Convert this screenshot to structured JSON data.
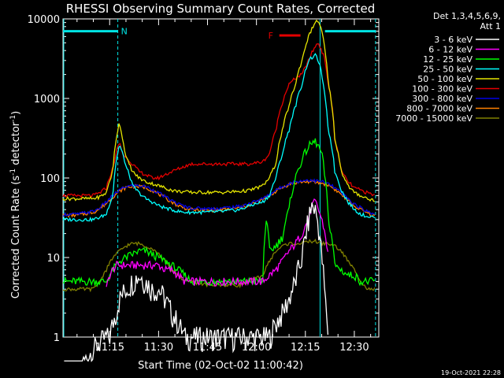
{
  "chart_data": {
    "type": "line",
    "title": "RHESSI Observing Summary Count Rates, Corrected",
    "xlabel": "Start Time (02-Oct-02 11:00:42)",
    "ylabel_main": "Corrected Count Rate (s",
    "ylabel_sup1": "-1",
    "ylabel_mid": " detector",
    "ylabel_sup2": "-1",
    "ylabel_end": ")",
    "yscale": "log",
    "ylim": [
      1,
      10000
    ],
    "xlim_minutes": [
      0.7,
      97.5
    ],
    "x_ticks": [
      {
        "min": 15,
        "label": "11:15"
      },
      {
        "min": 30,
        "label": "11:30"
      },
      {
        "min": 45,
        "label": "11:45"
      },
      {
        "min": 60,
        "label": "12:00"
      },
      {
        "min": 75,
        "label": "12:15"
      },
      {
        "min": 90,
        "label": "12:30"
      }
    ],
    "y_ticks": [
      {
        "v": 1,
        "label": "1"
      },
      {
        "v": 10,
        "label": "10"
      },
      {
        "v": 100,
        "label": "100"
      },
      {
        "v": 1000,
        "label": "1000"
      },
      {
        "v": 10000,
        "label": "10000"
      }
    ],
    "legend_header": [
      "Det 1,3,4,5,6,9,",
      "Att 1"
    ],
    "annotations": {
      "night_label": "N",
      "flare_label": "F",
      "timestamp": "19-Oct-2021 22:28"
    },
    "markers": {
      "night_bar": {
        "x_min": [
          0.7,
          17.5
        ],
        "y": 7000,
        "color": "#00e5e5"
      },
      "night_bar2": {
        "x_min": [
          81,
          96.5
        ],
        "y": 7000,
        "color": "#00e5e5"
      },
      "flare_bar": {
        "x_min": [
          67,
          73.5
        ],
        "y": 6200,
        "color": "#e50000"
      },
      "dashed_lines_min": [
        17.5,
        96.5
      ],
      "solid_line_min": 79.5
    },
    "series": [
      {
        "name": "3 - 6 keV",
        "color": "#ffffff",
        "x": [
          0.7,
          14,
          15,
          16,
          17,
          18,
          20,
          22,
          24,
          26,
          28,
          30,
          32,
          34,
          36,
          38,
          40,
          45,
          50,
          55,
          58,
          62,
          64,
          66,
          68,
          70,
          72,
          74,
          75,
          76,
          77,
          78,
          79,
          80,
          81,
          82
        ],
        "y": [
          0,
          1,
          1,
          1.5,
          2,
          3,
          4,
          5,
          6,
          5,
          4,
          4,
          3,
          2,
          1.5,
          1,
          1,
          1,
          1,
          1,
          1,
          1,
          1,
          1.5,
          2,
          3,
          5,
          10,
          18,
          30,
          45,
          40,
          25,
          10,
          3,
          1
        ]
      },
      {
        "name": "6 - 12 keV",
        "color": "#ff00ff",
        "x": [
          14,
          15,
          16,
          17,
          18,
          20,
          22,
          24,
          26,
          28,
          30,
          32,
          34,
          36,
          38,
          40,
          45,
          50,
          55,
          58,
          62,
          64,
          66,
          68,
          70,
          72,
          74,
          76,
          77,
          78,
          79,
          80,
          81,
          82
        ],
        "y": [
          4,
          6,
          7,
          8,
          8,
          8,
          8,
          8,
          8,
          8,
          8,
          7,
          7,
          6,
          5,
          5,
          5,
          5,
          5,
          5,
          5,
          6,
          7,
          9,
          12,
          15,
          20,
          30,
          45,
          50,
          40,
          30,
          20,
          10
        ]
      },
      {
        "name": "12 - 25 keV",
        "color": "#00ff00",
        "x": [
          0.7,
          12,
          14,
          16,
          18,
          20,
          22,
          24,
          26,
          28,
          30,
          32,
          34,
          36,
          38,
          40,
          45,
          50,
          55,
          58,
          62,
          63,
          64,
          66,
          68,
          70,
          72,
          74,
          76,
          78,
          79,
          80,
          81,
          82,
          84,
          86,
          88,
          90,
          92,
          94,
          96.5
        ],
        "y": [
          5,
          5,
          5,
          7,
          9,
          10,
          11,
          12,
          12,
          11,
          10,
          9,
          8,
          7,
          6,
          5,
          5,
          5,
          5,
          5,
          5,
          30,
          12,
          14,
          18,
          40,
          100,
          170,
          250,
          290,
          250,
          200,
          100,
          30,
          8,
          7,
          6,
          6,
          5,
          5,
          5
        ]
      },
      {
        "name": "25 - 50 keV",
        "color": "#00ffff",
        "x": [
          0.7,
          5,
          10,
          12,
          14,
          16,
          18,
          20,
          22,
          24,
          26,
          28,
          30,
          32,
          34,
          36,
          38,
          40,
          45,
          50,
          55,
          58,
          62,
          64,
          66,
          68,
          70,
          72,
          74,
          76,
          78,
          79,
          80,
          81,
          82,
          84,
          86,
          88,
          90,
          92,
          94,
          96.5
        ],
        "y": [
          30,
          30,
          30,
          32,
          35,
          60,
          260,
          140,
          80,
          65,
          55,
          50,
          45,
          42,
          40,
          38,
          37,
          37,
          37,
          38,
          40,
          45,
          50,
          60,
          100,
          200,
          400,
          800,
          1500,
          3000,
          3500,
          3000,
          2000,
          1000,
          400,
          120,
          70,
          50,
          40,
          35,
          33,
          32
        ]
      },
      {
        "name": "50 - 100 keV",
        "color": "#e5e500",
        "x": [
          0.7,
          5,
          10,
          12,
          14,
          16,
          18,
          19,
          20,
          22,
          24,
          26,
          28,
          30,
          32,
          34,
          36,
          38,
          40,
          45,
          50,
          55,
          58,
          62,
          64,
          66,
          68,
          70,
          72,
          74,
          76,
          78,
          79,
          80,
          81,
          82,
          84,
          86,
          88,
          90,
          92,
          94,
          96.5
        ],
        "y": [
          55,
          55,
          55,
          58,
          65,
          120,
          500,
          300,
          180,
          120,
          100,
          90,
          85,
          80,
          75,
          70,
          68,
          67,
          66,
          66,
          66,
          68,
          70,
          80,
          100,
          150,
          400,
          800,
          1500,
          3000,
          6000,
          9000,
          9500,
          7000,
          4000,
          1500,
          300,
          120,
          80,
          65,
          60,
          55,
          52
        ]
      },
      {
        "name": "100 - 300 keV",
        "color": "#e50000",
        "x": [
          0.7,
          5,
          10,
          12,
          14,
          16,
          18,
          19,
          20,
          22,
          24,
          26,
          28,
          30,
          32,
          34,
          36,
          38,
          40,
          45,
          50,
          55,
          58,
          62,
          64,
          66,
          68,
          70,
          72,
          74,
          76,
          78,
          79,
          80,
          81,
          82,
          84,
          86,
          88,
          90,
          92,
          94,
          96.5
        ],
        "y": [
          60,
          60,
          60,
          65,
          75,
          130,
          280,
          200,
          180,
          150,
          120,
          110,
          100,
          100,
          110,
          120,
          130,
          140,
          150,
          150,
          150,
          150,
          150,
          160,
          200,
          400,
          900,
          1500,
          1800,
          2000,
          3000,
          4500,
          5000,
          4000,
          3000,
          1500,
          300,
          120,
          90,
          75,
          70,
          65,
          60
        ]
      },
      {
        "name": "300 - 800 keV",
        "color": "#0000e5",
        "x": [
          0.7,
          5,
          10,
          12,
          14,
          16,
          18,
          20,
          22,
          24,
          26,
          28,
          30,
          32,
          34,
          36,
          38,
          40,
          45,
          50,
          55,
          58,
          62,
          64,
          66,
          68,
          70,
          72,
          74,
          76,
          78,
          80,
          82,
          84,
          86,
          88,
          90,
          92,
          94,
          96.5
        ],
        "y": [
          35,
          35,
          38,
          42,
          50,
          60,
          70,
          78,
          80,
          80,
          78,
          72,
          65,
          58,
          52,
          47,
          44,
          42,
          41,
          42,
          44,
          48,
          55,
          62,
          70,
          78,
          85,
          90,
          92,
          95,
          92,
          90,
          85,
          75,
          65,
          55,
          47,
          42,
          38,
          35
        ]
      },
      {
        "name": "800 - 7000 keV",
        "color": "#ff8000",
        "x": [
          0.7,
          5,
          10,
          12,
          14,
          16,
          18,
          20,
          22,
          24,
          26,
          28,
          30,
          32,
          34,
          36,
          38,
          40,
          45,
          50,
          55,
          58,
          62,
          64,
          66,
          68,
          70,
          72,
          74,
          76,
          78,
          80,
          82,
          84,
          86,
          88,
          90,
          92,
          94,
          96.5
        ],
        "y": [
          34,
          34,
          37,
          41,
          48,
          58,
          68,
          76,
          78,
          78,
          76,
          70,
          63,
          56,
          50,
          45,
          42,
          40,
          39,
          40,
          42,
          46,
          53,
          60,
          68,
          76,
          83,
          87,
          89,
          90,
          88,
          86,
          82,
          72,
          62,
          52,
          44,
          40,
          36,
          33
        ]
      },
      {
        "name": "7000 - 15000 keV",
        "color": "#808000",
        "x": [
          0.7,
          5,
          10,
          12,
          14,
          16,
          18,
          20,
          22,
          24,
          26,
          28,
          30,
          32,
          34,
          36,
          38,
          40,
          45,
          50,
          55,
          58,
          62,
          64,
          66,
          68,
          70,
          72,
          74,
          76,
          78,
          80,
          82,
          84,
          86,
          88,
          90,
          92,
          94,
          96.5
        ],
        "y": [
          4,
          4,
          4,
          5,
          7,
          10,
          12,
          14,
          15,
          15,
          14,
          13,
          11,
          9,
          7,
          6,
          5,
          5,
          4.5,
          4.5,
          4.5,
          5,
          6,
          9,
          12,
          14,
          15,
          15,
          15,
          16,
          16,
          15,
          15,
          14,
          12,
          9,
          7,
          5,
          4,
          4
        ]
      }
    ]
  }
}
